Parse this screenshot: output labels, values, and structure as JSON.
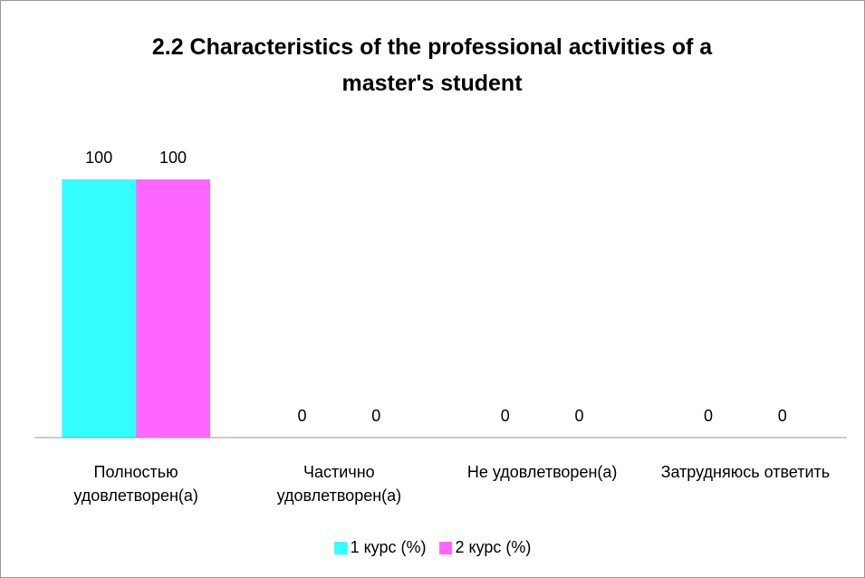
{
  "chart_data": {
    "type": "bar",
    "title": "2.2 Characteristics of the professional activities of a master's student",
    "categories": [
      "Полностью удовлетворен(а)",
      "Частично удовлетворен(а)",
      "Не удовлетворен(а)",
      "Затрудняюсь ответить"
    ],
    "series": [
      {
        "name": "1 курс (%)",
        "color": "#33ffff",
        "values": [
          100,
          0,
          0,
          0
        ]
      },
      {
        "name": "2 курс (%)",
        "color": "#ff66ff",
        "values": [
          100,
          0,
          0,
          0
        ]
      }
    ],
    "ylim": [
      0,
      120
    ],
    "legend": "bottom"
  }
}
